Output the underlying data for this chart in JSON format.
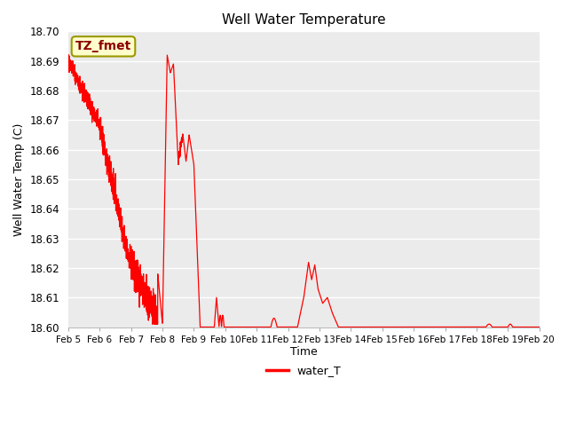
{
  "title": "Well Water Temperature",
  "xlabel": "Time",
  "ylabel": "Well Water Temp (C)",
  "ylim": [
    18.6,
    18.7
  ],
  "yticks": [
    18.6,
    18.61,
    18.62,
    18.63,
    18.64,
    18.65,
    18.66,
    18.67,
    18.68,
    18.69,
    18.7
  ],
  "line_color": "red",
  "line_label": "water_T",
  "bg_color": "#ebebeb",
  "annotation_text": "TZ_fmet",
  "annotation_bg": "#ffffcc",
  "annotation_border": "#999900",
  "figsize": [
    6.4,
    4.8
  ],
  "dpi": 100
}
